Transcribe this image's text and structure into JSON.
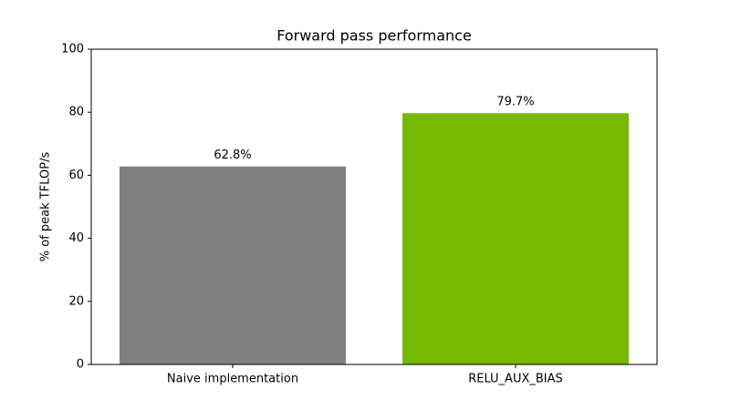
{
  "chart_data": {
    "type": "bar",
    "title": "Forward pass performance",
    "y_label": "% of peak TFLOP/s",
    "categories": [
      "Naive implementation",
      "RELU_AUX_BIAS"
    ],
    "values": [
      62.8,
      79.7
    ],
    "value_labels": [
      "62.8%",
      "79.7%"
    ],
    "colors": [
      "#808080",
      "#76b900"
    ],
    "ylim": [
      0,
      100
    ],
    "yticks": [
      0,
      20,
      40,
      60,
      80,
      100
    ],
    "grid": false
  }
}
